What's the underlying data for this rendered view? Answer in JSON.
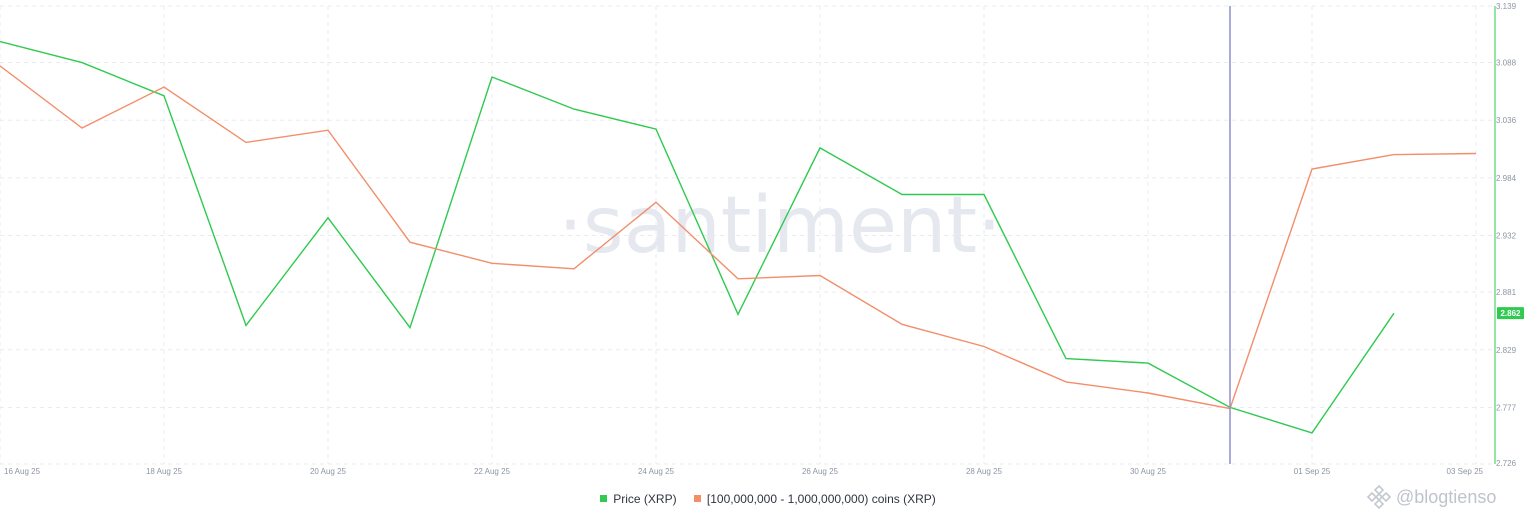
{
  "watermark": "·santiment·",
  "brand": {
    "handle": "@blogtienso",
    "icon": "binance-diamond-icon"
  },
  "colors": {
    "price": "#2fca4f",
    "holders": "#f28e6a",
    "crosshair": "#8e8fc8",
    "badge": "#2fca4f"
  },
  "chart_data": {
    "type": "line",
    "x_tick_labels": [
      "16 Aug 25",
      "18 Aug 25",
      "20 Aug 25",
      "22 Aug 25",
      "24 Aug 25",
      "26 Aug 25",
      "28 Aug 25",
      "30 Aug 25",
      "01 Sep 25",
      "03 Sep 25"
    ],
    "x": [
      "2025-08-16",
      "2025-08-17",
      "2025-08-18",
      "2025-08-19",
      "2025-08-20",
      "2025-08-21",
      "2025-08-22",
      "2025-08-23",
      "2025-08-24",
      "2025-08-25",
      "2025-08-26",
      "2025-08-27",
      "2025-08-28",
      "2025-08-29",
      "2025-08-30",
      "2025-08-31",
      "2025-09-01",
      "2025-09-02",
      "2025-09-03"
    ],
    "y_tick_labels": [
      "3.139",
      "3.088",
      "3.036",
      "2.984",
      "2.932",
      "2.881",
      "2.829",
      "2.777",
      "2.726"
    ],
    "ylim": [
      2.726,
      3.139
    ],
    "grid": true,
    "legend_position": "bottom",
    "crosshair_date": "2025-08-31",
    "last_value_badge": "2.862",
    "series": [
      {
        "name": "Price (XRP)",
        "values": [
          3.107,
          3.088,
          3.058,
          2.851,
          2.948,
          2.849,
          3.075,
          3.046,
          3.028,
          2.861,
          3.011,
          2.969,
          2.969,
          2.821,
          2.817,
          2.777,
          2.754,
          2.862,
          null
        ]
      },
      {
        "name": "[100,000,000 - 1,000,000,000) coins (XRP)",
        "values": [
          null,
          null,
          null,
          null,
          null,
          null,
          null,
          null,
          null,
          null,
          null,
          null,
          null,
          null,
          null,
          null,
          null,
          null,
          null
        ],
        "plot_values": [
          3.085,
          3.029,
          3.066,
          3.016,
          3.027,
          2.926,
          2.907,
          2.902,
          2.962,
          2.893,
          2.896,
          2.852,
          2.832,
          2.8,
          2.79,
          2.776,
          2.992,
          3.005,
          3.006
        ]
      }
    ]
  }
}
